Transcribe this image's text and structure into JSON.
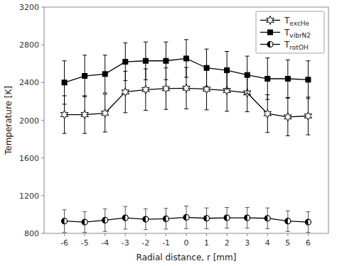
{
  "chart_data": {
    "type": "line",
    "xlabel": "Radial distance, r [mm]",
    "ylabel": "Temperature [K]",
    "x": [
      -6,
      -5,
      -4,
      -3,
      -2,
      -1,
      0,
      1,
      2,
      3,
      4,
      5,
      6
    ],
    "xlim": [
      -7,
      7
    ],
    "ylim": [
      800,
      3200
    ],
    "xticks": [
      -6,
      -5,
      -4,
      -3,
      -2,
      -1,
      0,
      1,
      2,
      3,
      4,
      5,
      6
    ],
    "yticks": [
      800,
      1200,
      1600,
      2000,
      2400,
      2800,
      3200
    ],
    "grid": false,
    "legend": "upper right",
    "series": [
      {
        "name": "TexcHe",
        "color": "#000000",
        "marker": "star",
        "line_style": "solid",
        "values": [
          2060,
          2060,
          2075,
          2300,
          2325,
          2335,
          2340,
          2330,
          2315,
          2290,
          2070,
          2035,
          2045
        ],
        "errors": [
          200,
          200,
          200,
          220,
          220,
          220,
          220,
          220,
          220,
          200,
          200,
          200,
          200
        ]
      },
      {
        "name": "TvibrN2",
        "color": "#000000",
        "marker": "square",
        "line_style": "solid",
        "values": [
          2400,
          2470,
          2490,
          2620,
          2630,
          2630,
          2655,
          2555,
          2530,
          2480,
          2440,
          2440,
          2430
        ],
        "errors": [
          230,
          220,
          200,
          200,
          200,
          200,
          200,
          200,
          200,
          200,
          220,
          200,
          200
        ]
      },
      {
        "name": "TrotOH",
        "color": "#000000",
        "marker": "half-circle",
        "line_style": "solid",
        "values": [
          930,
          920,
          940,
          965,
          950,
          955,
          970,
          960,
          965,
          965,
          960,
          930,
          920
        ],
        "errors": [
          120,
          110,
          120,
          120,
          110,
          110,
          120,
          110,
          110,
          110,
          110,
          110,
          110
        ]
      }
    ]
  }
}
